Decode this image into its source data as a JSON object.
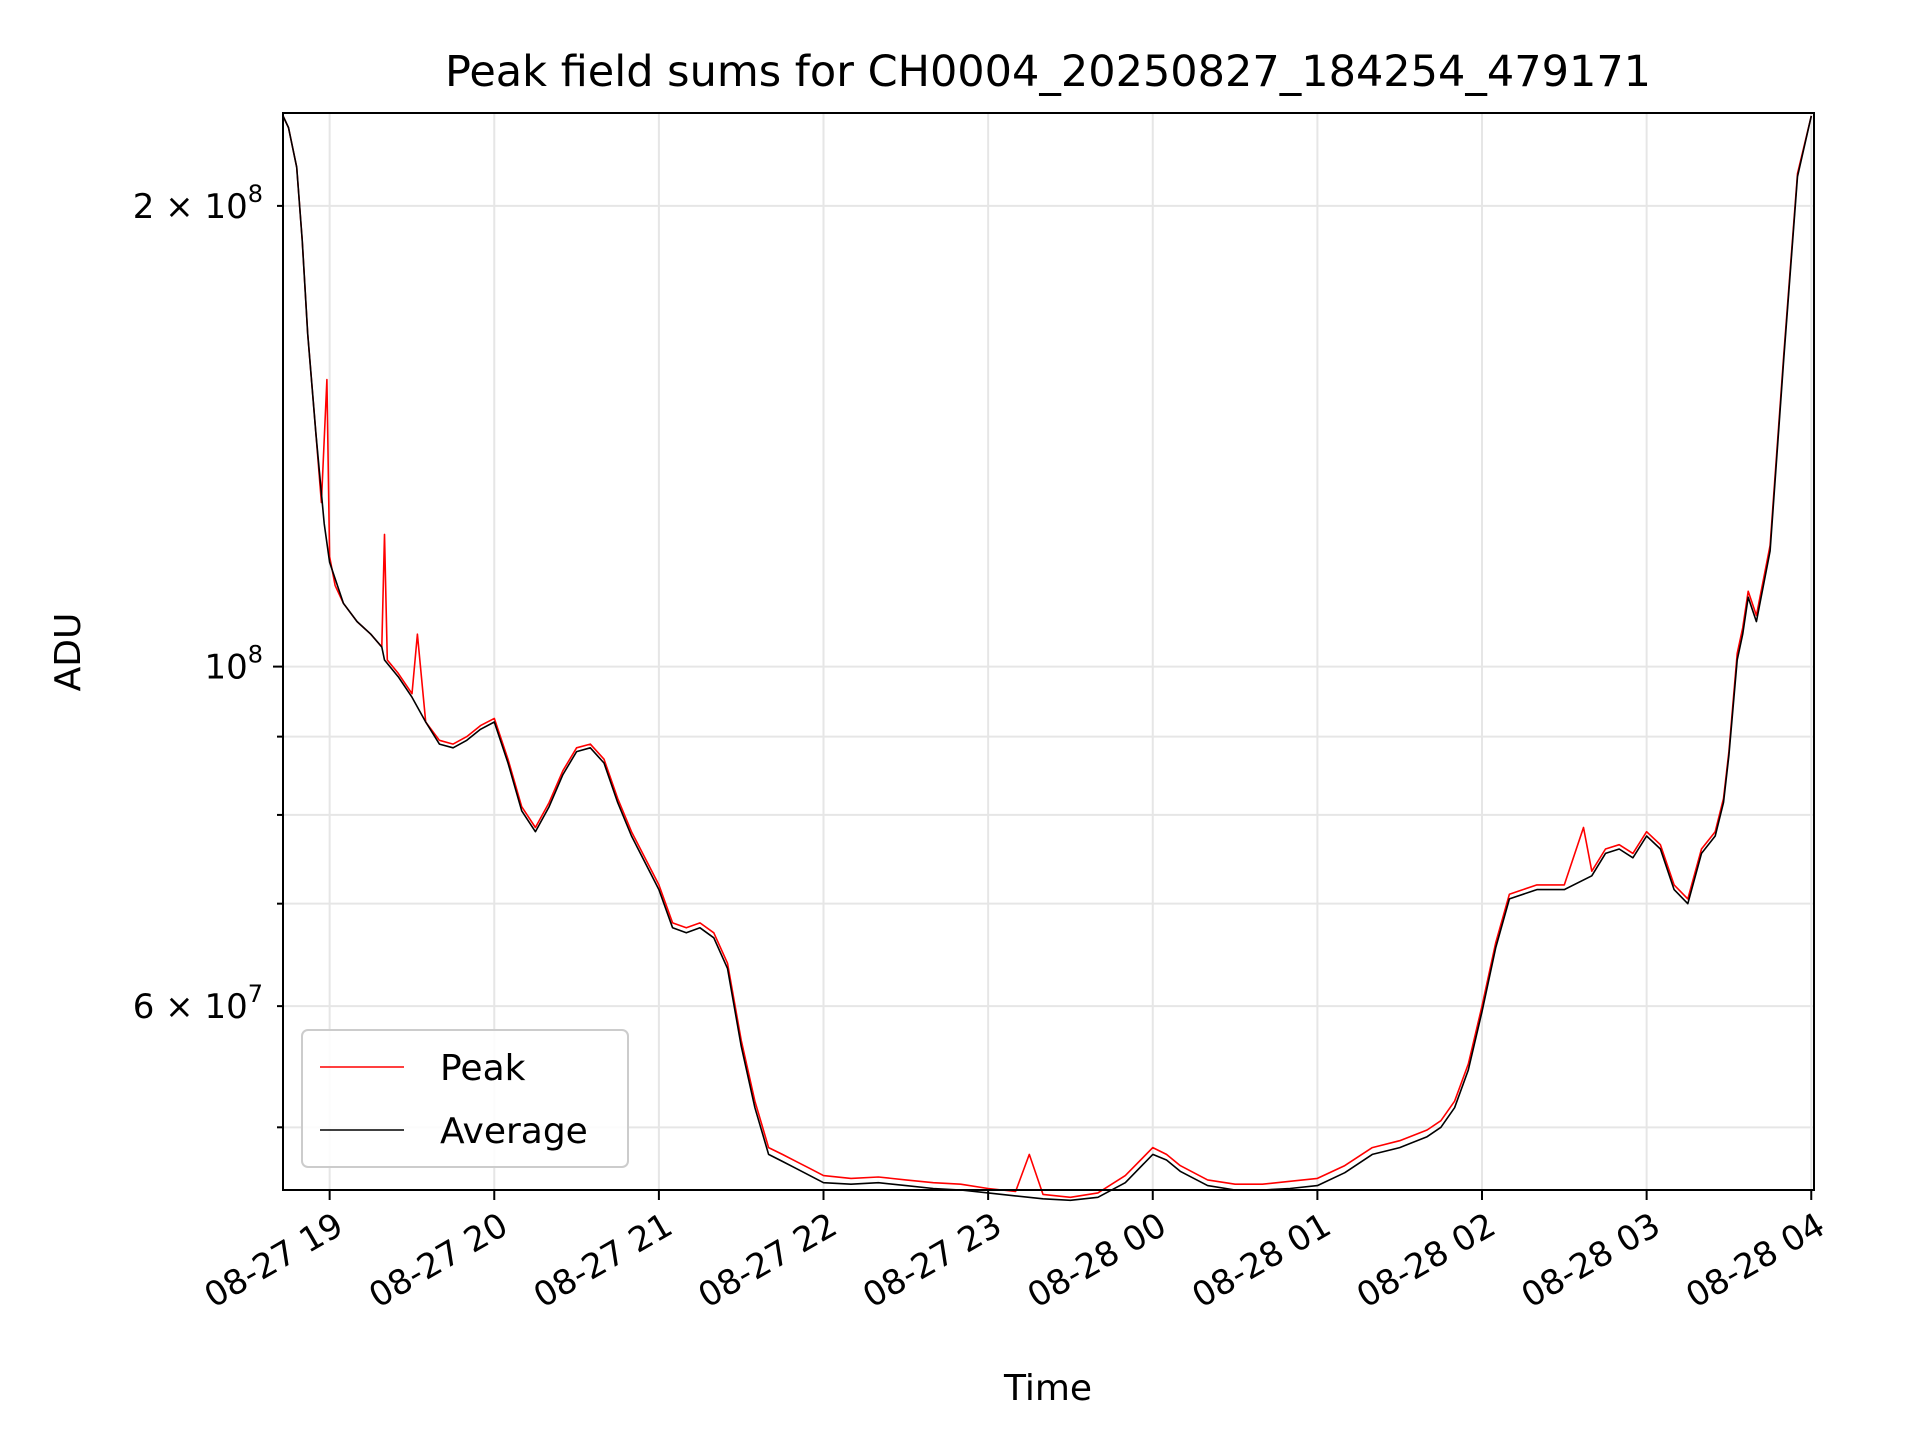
{
  "chart_data": {
    "type": "line",
    "title": "Peak field sums for CH0004_20250827_184254_479171",
    "xlabel": "Time",
    "ylabel": "ADU",
    "x_scale": "time",
    "y_scale": "log",
    "xlim": [
      "2025-08-27 18:43",
      "2025-08-28 04:01"
    ],
    "ylim": [
      45500000,
      230000000
    ],
    "x_ticks": [
      {
        "value": "2025-08-27 19:00",
        "label": "08-27 19"
      },
      {
        "value": "2025-08-27 20:00",
        "label": "08-27 20"
      },
      {
        "value": "2025-08-27 21:00",
        "label": "08-27 21"
      },
      {
        "value": "2025-08-27 22:00",
        "label": "08-27 22"
      },
      {
        "value": "2025-08-27 23:00",
        "label": "08-27 23"
      },
      {
        "value": "2025-08-28 00:00",
        "label": "08-28 00"
      },
      {
        "value": "2025-08-28 01:00",
        "label": "08-28 01"
      },
      {
        "value": "2025-08-28 02:00",
        "label": "08-28 02"
      },
      {
        "value": "2025-08-28 03:00",
        "label": "08-28 03"
      },
      {
        "value": "2025-08-28 04:00",
        "label": "08-28 04"
      }
    ],
    "y_major_ticks": [
      {
        "value": 100000000,
        "base": "10",
        "exp": "8"
      }
    ],
    "y_minor_ticks": [
      {
        "value": 60000000,
        "mant": "6",
        "base": "10",
        "exp": "7"
      },
      {
        "value": 200000000,
        "mant": "2",
        "base": "10",
        "exp": "8"
      }
    ],
    "y_minor_unlabeled": [
      50000000,
      70000000,
      80000000,
      90000000
    ],
    "grid": true,
    "legend": "lower-left",
    "series": [
      {
        "name": "Peak",
        "color": "#ff0000",
        "x": [
          "2025-08-27 18:43",
          "2025-08-27 18:45",
          "2025-08-27 18:48",
          "2025-08-27 18:50",
          "2025-08-27 18:52",
          "2025-08-27 18:55",
          "2025-08-27 18:57",
          "2025-08-27 18:59",
          "2025-08-27 19:00",
          "2025-08-27 19:02",
          "2025-08-27 19:05",
          "2025-08-27 19:10",
          "2025-08-27 19:15",
          "2025-08-27 19:19",
          "2025-08-27 19:20",
          "2025-08-27 19:21",
          "2025-08-27 19:25",
          "2025-08-27 19:30",
          "2025-08-27 19:32",
          "2025-08-27 19:35",
          "2025-08-27 19:40",
          "2025-08-27 19:45",
          "2025-08-27 19:50",
          "2025-08-27 19:55",
          "2025-08-27 20:00",
          "2025-08-27 20:05",
          "2025-08-27 20:10",
          "2025-08-27 20:15",
          "2025-08-27 20:20",
          "2025-08-27 20:25",
          "2025-08-27 20:30",
          "2025-08-27 20:35",
          "2025-08-27 20:40",
          "2025-08-27 20:45",
          "2025-08-27 20:50",
          "2025-08-27 21:00",
          "2025-08-27 21:05",
          "2025-08-27 21:10",
          "2025-08-27 21:15",
          "2025-08-27 21:20",
          "2025-08-27 21:25",
          "2025-08-27 21:30",
          "2025-08-27 21:35",
          "2025-08-27 21:40",
          "2025-08-27 21:45",
          "2025-08-27 21:50",
          "2025-08-27 21:55",
          "2025-08-27 22:00",
          "2025-08-27 22:10",
          "2025-08-27 22:20",
          "2025-08-27 22:30",
          "2025-08-27 22:40",
          "2025-08-27 22:50",
          "2025-08-27 23:00",
          "2025-08-27 23:10",
          "2025-08-27 23:15",
          "2025-08-27 23:20",
          "2025-08-27 23:30",
          "2025-08-27 23:40",
          "2025-08-27 23:50",
          "2025-08-28 00:00",
          "2025-08-28 00:05",
          "2025-08-28 00:10",
          "2025-08-28 00:20",
          "2025-08-28 00:30",
          "2025-08-28 00:40",
          "2025-08-28 00:50",
          "2025-08-28 01:00",
          "2025-08-28 01:10",
          "2025-08-28 01:20",
          "2025-08-28 01:30",
          "2025-08-28 01:40",
          "2025-08-28 01:45",
          "2025-08-28 01:50",
          "2025-08-28 01:55",
          "2025-08-28 02:00",
          "2025-08-28 02:05",
          "2025-08-28 02:10",
          "2025-08-28 02:20",
          "2025-08-28 02:30",
          "2025-08-28 02:37",
          "2025-08-28 02:40",
          "2025-08-28 02:45",
          "2025-08-28 02:50",
          "2025-08-28 02:55",
          "2025-08-28 03:00",
          "2025-08-28 03:05",
          "2025-08-28 03:10",
          "2025-08-28 03:15",
          "2025-08-28 03:20",
          "2025-08-28 03:25",
          "2025-08-28 03:28",
          "2025-08-28 03:30",
          "2025-08-28 03:33",
          "2025-08-28 03:35",
          "2025-08-28 03:37",
          "2025-08-28 03:40",
          "2025-08-28 03:45",
          "2025-08-28 03:50",
          "2025-08-28 03:55",
          "2025-08-28 04:00"
        ],
        "y": [
          229000000,
          225000000,
          212000000,
          190000000,
          165000000,
          142000000,
          128000000,
          154000000,
          118000000,
          113000000,
          110000000,
          107000000,
          105000000,
          103000000,
          122000000,
          101000000,
          99000000,
          96000000,
          105000000,
          92000000,
          89500000,
          89000000,
          90000000,
          91500000,
          92500000,
          87000000,
          81000000,
          78500000,
          81500000,
          85500000,
          88500000,
          89000000,
          87000000,
          82000000,
          78000000,
          72000000,
          68000000,
          67500000,
          68000000,
          67000000,
          64000000,
          57000000,
          52000000,
          48500000,
          48000000,
          47500000,
          47000000,
          46500000,
          46300000,
          46400000,
          46200000,
          46000000,
          45900000,
          45600000,
          45400000,
          48000000,
          45200000,
          45000000,
          45300000,
          46500000,
          48500000,
          48000000,
          47200000,
          46200000,
          45900000,
          45900000,
          46100000,
          46300000,
          47200000,
          48500000,
          49000000,
          49800000,
          50500000,
          52000000,
          55000000,
          60000000,
          66000000,
          71000000,
          72000000,
          72000000,
          78500000,
          73500000,
          76000000,
          76500000,
          75500000,
          78000000,
          76500000,
          72000000,
          70500000,
          76000000,
          78000000,
          82000000,
          88000000,
          102000000,
          106000000,
          112000000,
          108000000,
          120000000,
          160000000,
          210000000,
          229000000
        ]
      },
      {
        "name": "Average",
        "color": "#000000",
        "x": [
          "2025-08-27 18:43",
          "2025-08-27 18:45",
          "2025-08-27 18:48",
          "2025-08-27 18:50",
          "2025-08-27 18:52",
          "2025-08-27 18:55",
          "2025-08-27 18:58",
          "2025-08-27 19:00",
          "2025-08-27 19:05",
          "2025-08-27 19:10",
          "2025-08-27 19:15",
          "2025-08-27 19:19",
          "2025-08-27 19:20",
          "2025-08-27 19:25",
          "2025-08-27 19:30",
          "2025-08-27 19:35",
          "2025-08-27 19:40",
          "2025-08-27 19:45",
          "2025-08-27 19:50",
          "2025-08-27 19:55",
          "2025-08-27 20:00",
          "2025-08-27 20:05",
          "2025-08-27 20:10",
          "2025-08-27 20:15",
          "2025-08-27 20:20",
          "2025-08-27 20:25",
          "2025-08-27 20:30",
          "2025-08-27 20:35",
          "2025-08-27 20:40",
          "2025-08-27 20:45",
          "2025-08-27 20:50",
          "2025-08-27 21:00",
          "2025-08-27 21:05",
          "2025-08-27 21:10",
          "2025-08-27 21:15",
          "2025-08-27 21:20",
          "2025-08-27 21:25",
          "2025-08-27 21:30",
          "2025-08-27 21:35",
          "2025-08-27 21:40",
          "2025-08-27 21:45",
          "2025-08-27 21:50",
          "2025-08-27 21:55",
          "2025-08-27 22:00",
          "2025-08-27 22:10",
          "2025-08-27 22:20",
          "2025-08-27 22:30",
          "2025-08-27 22:40",
          "2025-08-27 22:50",
          "2025-08-27 23:00",
          "2025-08-27 23:10",
          "2025-08-27 23:20",
          "2025-08-27 23:30",
          "2025-08-27 23:40",
          "2025-08-27 23:50",
          "2025-08-28 00:00",
          "2025-08-28 00:05",
          "2025-08-28 00:10",
          "2025-08-28 00:20",
          "2025-08-28 00:30",
          "2025-08-28 00:40",
          "2025-08-28 00:50",
          "2025-08-28 01:00",
          "2025-08-28 01:10",
          "2025-08-28 01:20",
          "2025-08-28 01:30",
          "2025-08-28 01:40",
          "2025-08-28 01:45",
          "2025-08-28 01:50",
          "2025-08-28 01:55",
          "2025-08-28 02:00",
          "2025-08-28 02:05",
          "2025-08-28 02:10",
          "2025-08-28 02:20",
          "2025-08-28 02:30",
          "2025-08-28 02:40",
          "2025-08-28 02:45",
          "2025-08-28 02:50",
          "2025-08-28 02:55",
          "2025-08-28 03:00",
          "2025-08-28 03:05",
          "2025-08-28 03:10",
          "2025-08-28 03:15",
          "2025-08-28 03:20",
          "2025-08-28 03:25",
          "2025-08-28 03:28",
          "2025-08-28 03:30",
          "2025-08-28 03:33",
          "2025-08-28 03:35",
          "2025-08-28 03:37",
          "2025-08-28 03:40",
          "2025-08-28 03:45",
          "2025-08-28 03:50",
          "2025-08-28 03:55",
          "2025-08-28 04:00"
        ],
        "y": [
          229000000,
          225000000,
          212000000,
          190000000,
          165000000,
          142000000,
          124000000,
          117000000,
          110000000,
          107000000,
          105000000,
          103000000,
          101000000,
          98500000,
          95500000,
          92000000,
          89000000,
          88500000,
          89500000,
          91000000,
          92000000,
          86500000,
          80500000,
          78000000,
          81000000,
          85000000,
          88000000,
          88500000,
          86500000,
          81500000,
          77500000,
          71500000,
          67500000,
          67000000,
          67500000,
          66500000,
          63500000,
          56500000,
          51500000,
          48000000,
          47500000,
          47000000,
          46500000,
          46000000,
          45900000,
          46000000,
          45800000,
          45600000,
          45500000,
          45300000,
          45100000,
          44900000,
          44800000,
          45000000,
          46000000,
          48000000,
          47600000,
          46800000,
          45800000,
          45500000,
          45500000,
          45600000,
          45800000,
          46700000,
          48000000,
          48500000,
          49300000,
          50000000,
          51500000,
          54500000,
          59500000,
          65500000,
          70500000,
          71500000,
          71500000,
          73000000,
          75500000,
          76000000,
          75000000,
          77500000,
          76000000,
          71500000,
          70000000,
          75500000,
          77500000,
          81500000,
          87500000,
          101000000,
          105000000,
          111000000,
          107000000,
          119000000,
          159000000,
          209000000,
          229000000
        ]
      }
    ]
  }
}
